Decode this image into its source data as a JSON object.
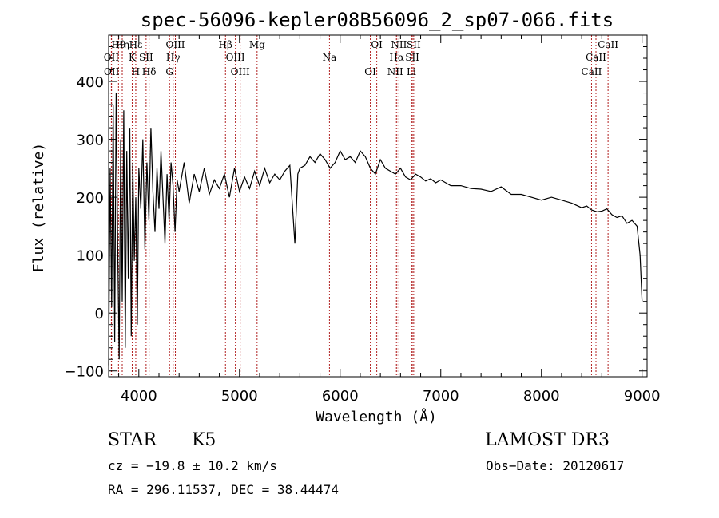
{
  "chart_data": {
    "type": "line",
    "title": "spec-56096-kepler08B56096_2_sp07-066.fits",
    "xlabel": "Wavelength (Å)",
    "ylabel": "Flux (relative)",
    "xlim": [
      3700,
      9050
    ],
    "ylim": [
      -110,
      480
    ],
    "x_ticks": [
      4000,
      5000,
      6000,
      7000,
      8000,
      9000
    ],
    "y_ticks": [
      -100,
      0,
      100,
      200,
      300,
      400
    ],
    "series": [
      {
        "name": "flux",
        "x": [
          3700,
          3715,
          3730,
          3745,
          3760,
          3775,
          3790,
          3805,
          3820,
          3835,
          3850,
          3865,
          3880,
          3895,
          3910,
          3925,
          3940,
          3955,
          3970,
          3985,
          4000,
          4020,
          4040,
          4060,
          4080,
          4100,
          4120,
          4140,
          4160,
          4180,
          4200,
          4220,
          4240,
          4260,
          4280,
          4300,
          4320,
          4340,
          4360,
          4380,
          4400,
          4450,
          4500,
          4550,
          4600,
          4650,
          4700,
          4750,
          4800,
          4850,
          4900,
          4950,
          5000,
          5050,
          5100,
          5150,
          5200,
          5250,
          5300,
          5350,
          5400,
          5450,
          5500,
          5550,
          5580,
          5600,
          5650,
          5700,
          5750,
          5800,
          5850,
          5900,
          5950,
          6000,
          6050,
          6100,
          6150,
          6200,
          6250,
          6300,
          6350,
          6400,
          6450,
          6500,
          6550,
          6600,
          6650,
          6700,
          6750,
          6800,
          6850,
          6900,
          6950,
          7000,
          7100,
          7200,
          7300,
          7400,
          7500,
          7600,
          7700,
          7800,
          7900,
          8000,
          8100,
          8200,
          8300,
          8400,
          8450,
          8500,
          8550,
          8600,
          8650,
          8700,
          8750,
          8800,
          8850,
          8900,
          8950,
          8980,
          9000
        ],
        "values": [
          -90,
          250,
          10,
          360,
          -50,
          380,
          120,
          -80,
          300,
          20,
          350,
          -60,
          280,
          60,
          320,
          -40,
          260,
          90,
          200,
          -20,
          250,
          180,
          300,
          110,
          260,
          160,
          320,
          210,
          140,
          250,
          180,
          280,
          200,
          120,
          240,
          160,
          260,
          220,
          140,
          230,
          210,
          260,
          190,
          240,
          210,
          250,
          205,
          230,
          215,
          240,
          200,
          250,
          210,
          235,
          215,
          245,
          220,
          250,
          225,
          240,
          230,
          245,
          255,
          120,
          240,
          250,
          255,
          270,
          260,
          275,
          265,
          250,
          260,
          280,
          265,
          270,
          260,
          280,
          270,
          250,
          240,
          265,
          250,
          245,
          240,
          250,
          235,
          230,
          240,
          235,
          228,
          232,
          225,
          230,
          220,
          220,
          215,
          214,
          210,
          218,
          205,
          205,
          200,
          195,
          200,
          195,
          190,
          182,
          185,
          178,
          175,
          176,
          180,
          170,
          165,
          168,
          155,
          160,
          150,
          100,
          20
        ]
      }
    ],
    "reference_lines": [
      {
        "label": "Hθ",
        "x": 3798
      },
      {
        "label": "OII",
        "x": 3727
      },
      {
        "label": "OII",
        "x": 3729
      },
      {
        "label": "Hη",
        "x": 3835
      },
      {
        "label": "K",
        "x": 3934
      },
      {
        "label": "H",
        "x": 3969
      },
      {
        "label": "Hε",
        "x": 3970
      },
      {
        "label": "SII",
        "x": 4072
      },
      {
        "label": "Hδ",
        "x": 4102
      },
      {
        "label": "OIII",
        "x": 4363
      },
      {
        "label": "Hγ",
        "x": 4341
      },
      {
        "label": "G",
        "x": 4305
      },
      {
        "label": "Hβ",
        "x": 4861
      },
      {
        "label": "OIII",
        "x": 4959
      },
      {
        "label": "OIII",
        "x": 5007
      },
      {
        "label": "Mg",
        "x": 5175
      },
      {
        "label": "Na",
        "x": 5894
      },
      {
        "label": "OI",
        "x": 6300
      },
      {
        "label": "OI",
        "x": 6364
      },
      {
        "label": "Hα",
        "x": 6563
      },
      {
        "label": "NII",
        "x": 6548
      },
      {
        "label": "NII",
        "x": 6584
      },
      {
        "label": "SII",
        "x": 6717
      },
      {
        "label": "Li",
        "x": 6708
      },
      {
        "label": "SII",
        "x": 6731
      },
      {
        "label": "CaII",
        "x": 8542
      },
      {
        "label": "CaII",
        "x": 8498
      },
      {
        "label": "CaII",
        "x": 8662
      }
    ]
  },
  "info": {
    "class_label": "STAR",
    "subclass": "K5",
    "survey": "LAMOST DR3",
    "cz_text": "cz = −19.8 ± 10.2 km/s",
    "obs_date": "Obs−Date: 20120617",
    "coords": "RA = 296.11537, DEC =  38.44474"
  },
  "colors": {
    "spectrum": "#000000",
    "reference_line": "#b22222",
    "axes": "#000000"
  }
}
